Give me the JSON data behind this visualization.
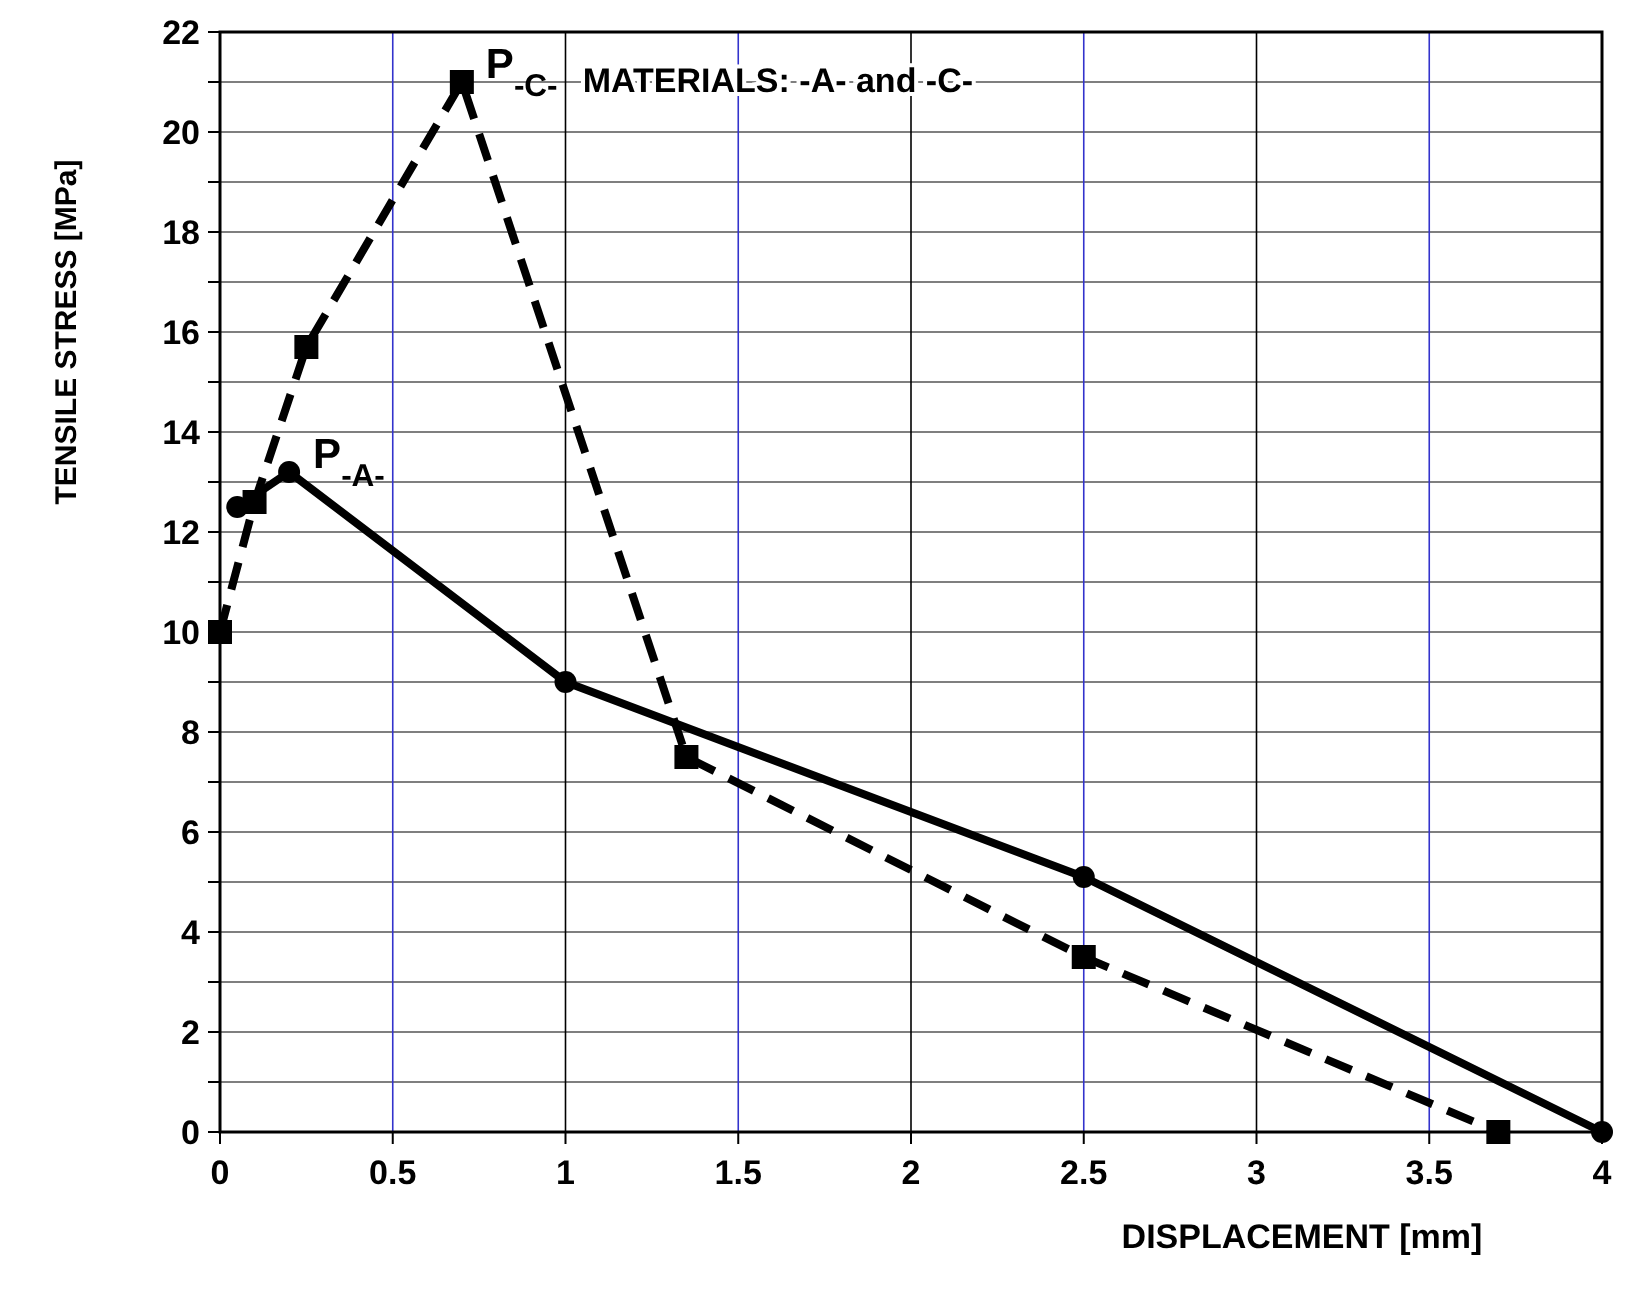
{
  "chart_data": {
    "type": "line",
    "xlabel": "DISPLACEMENT [mm]",
    "ylabel": "TENSILE STRESS [MPa]",
    "xlim": [
      0,
      4
    ],
    "xticks": [
      0,
      0.5,
      1,
      1.5,
      2,
      2.5,
      3,
      3.5,
      4
    ],
    "ylim": [
      0,
      22
    ],
    "yticks": [
      0,
      {
        "value": 1,
        "label": null
      },
      2,
      {
        "value": 3,
        "label": null
      },
      4,
      {
        "value": 5,
        "label": null
      },
      6,
      {
        "value": 7,
        "label": null
      },
      8,
      {
        "value": 9,
        "label": null
      },
      10,
      {
        "value": 11,
        "label": null
      },
      12,
      {
        "value": 13,
        "label": null
      },
      14,
      {
        "value": 15,
        "label": null
      },
      16,
      {
        "value": 17,
        "label": null
      },
      18,
      {
        "value": 19,
        "label": null
      },
      20,
      {
        "value": 21,
        "label": null
      },
      22
    ],
    "grid": true,
    "series": [
      {
        "color": "#000000",
        "line_style": "solid",
        "marker": "circle",
        "x": [
          0.05,
          0.2,
          1,
          2.5,
          4
        ],
        "values": [
          12.5,
          13.2,
          9,
          5.1,
          0
        ]
      },
      {
        "color": "#000000",
        "line_style": "dashed",
        "marker": "square",
        "x": [
          0,
          0.1,
          0.25,
          0.7,
          1.35,
          2.5,
          3.7
        ],
        "values": [
          10,
          12.6,
          15.7,
          21,
          7.5,
          3.5,
          0
        ]
      }
    ],
    "annotations": [
      {
        "text": "P$_{-A-}$",
        "x": 0.2,
        "y": 13.2
      },
      {
        "text": "P$_{-C-}$",
        "x": 0.7,
        "y": 21
      },
      "MATERIALS:  -A- and -C-"
    ]
  }
}
